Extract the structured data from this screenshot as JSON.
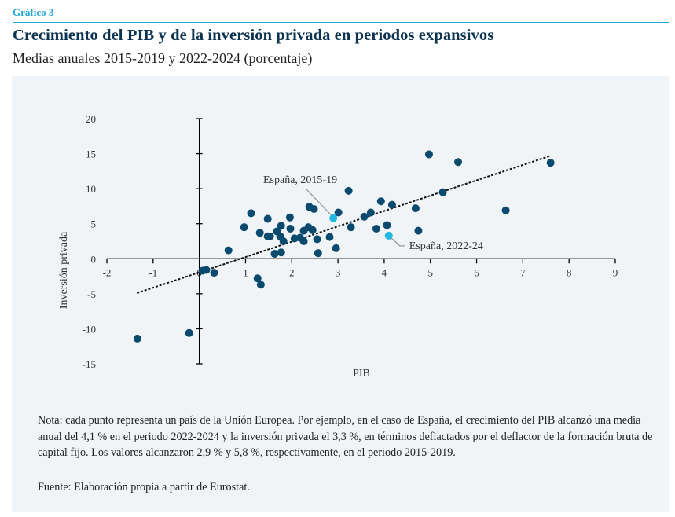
{
  "header": {
    "kicker": "Gráfico 3",
    "title": "Crecimiento del PIB y de la inversión privada en periodos expansivos",
    "subtitle": "Medias anuales 2015-2019 y 2022-2024 (porcentaje)"
  },
  "colors": {
    "accent": "#1ea7d8",
    "title": "#0c3350",
    "point": "#0b4a6f",
    "highlight": "#22b8e0",
    "panel": "#f0f4f6"
  },
  "chart_data": {
    "type": "scatter",
    "title": "Crecimiento del PIB y de la inversión privada en periodos expansivos",
    "subtitle": "Medias anuales 2015-2019 y 2022-2024 (porcentaje)",
    "xlabel": "PIB",
    "ylabel": "Inversión privada",
    "xlim": [
      -2,
      9
    ],
    "ylim": [
      -15,
      20
    ],
    "x_ticks": [
      "-2",
      "-1",
      "0",
      "1",
      "2",
      "3",
      "4",
      "5",
      "6",
      "7",
      "8",
      "9"
    ],
    "y_ticks": [
      "20",
      "15",
      "10",
      "5",
      "0",
      "-5",
      "-10",
      "-15"
    ],
    "x_tick_values": [
      -2,
      -1,
      0,
      1,
      2,
      3,
      4,
      5,
      6,
      7,
      8,
      9
    ],
    "y_tick_values": [
      20,
      15,
      10,
      5,
      0,
      -5,
      -10,
      -15
    ],
    "grid": false,
    "legend": "none",
    "series": [
      {
        "name": "Países de la UE",
        "points": [
          [
            -1.34,
            -11.4
          ],
          [
            -0.22,
            -10.6
          ],
          [
            0.07,
            -1.7
          ],
          [
            0.15,
            -1.6
          ],
          [
            0.32,
            -2.0
          ],
          [
            0.63,
            1.2
          ],
          [
            1.26,
            -2.8
          ],
          [
            1.33,
            -3.7
          ],
          [
            0.97,
            4.5
          ],
          [
            1.12,
            6.5
          ],
          [
            1.31,
            3.7
          ],
          [
            1.48,
            3.2
          ],
          [
            1.53,
            3.2
          ],
          [
            1.48,
            5.7
          ],
          [
            1.68,
            3.9
          ],
          [
            1.77,
            4.7
          ],
          [
            1.75,
            3.2
          ],
          [
            1.82,
            2.5
          ],
          [
            1.63,
            0.7
          ],
          [
            1.77,
            0.9
          ],
          [
            1.96,
            5.9
          ],
          [
            1.97,
            4.3
          ],
          [
            2.06,
            2.9
          ],
          [
            2.18,
            3.0
          ],
          [
            2.26,
            4.0
          ],
          [
            2.26,
            2.5
          ],
          [
            2.36,
            4.5
          ],
          [
            2.45,
            4.1
          ],
          [
            2.38,
            7.4
          ],
          [
            2.48,
            7.1
          ],
          [
            2.55,
            2.8
          ],
          [
            2.57,
            0.8
          ],
          [
            3.01,
            6.6
          ],
          [
            2.82,
            3.1
          ],
          [
            2.96,
            1.5
          ],
          [
            3.23,
            9.7
          ],
          [
            3.28,
            4.5
          ],
          [
            3.57,
            6.0
          ],
          [
            3.71,
            6.6
          ],
          [
            3.93,
            8.2
          ],
          [
            4.17,
            7.7
          ],
          [
            3.83,
            4.3
          ],
          [
            4.06,
            4.8
          ],
          [
            4.68,
            7.2
          ],
          [
            4.74,
            4.0
          ],
          [
            4.97,
            14.9
          ],
          [
            5.27,
            9.5
          ],
          [
            5.6,
            13.8
          ],
          [
            6.63,
            6.9
          ],
          [
            7.6,
            13.7
          ]
        ]
      },
      {
        "name": "España",
        "highlight": true,
        "points": [
          {
            "label": "España, 2015-19",
            "x": 2.9,
            "y": 5.8
          },
          {
            "label": "España, 2022-24",
            "x": 4.1,
            "y": 3.3
          }
        ]
      }
    ],
    "trendline": {
      "style": "dotted",
      "from": [
        -1.35,
        -4.9
      ],
      "to": [
        7.6,
        14.7
      ]
    }
  },
  "footer": {
    "note": "Nota: cada punto representa un país de la Unión Europea. Por ejemplo, en el caso de España, el crecimiento del PIB alcanzó una media anual del 4,1 % en el periodo 2022-2024 y la inversión privada el 3,3 %, en términos deflactados por el deflactor de la formación bruta de capital fijo. Los valores alcanzaron 2,9 % y 5,8 %, respectivamente, en el periodo 2015-2019.",
    "source": "Fuente: Elaboración propia a partir de Eurostat."
  }
}
